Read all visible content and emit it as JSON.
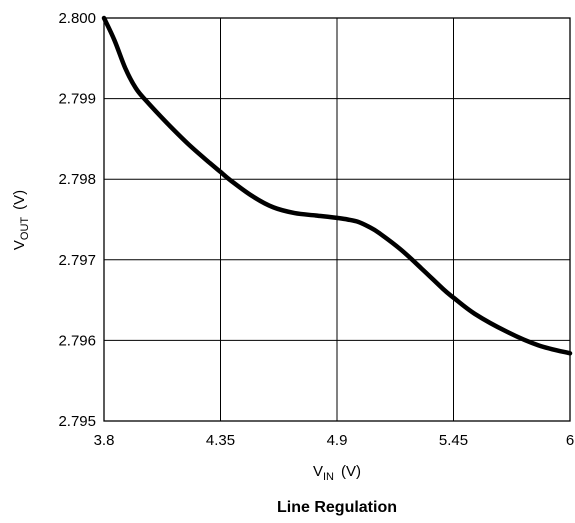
{
  "chart_data": {
    "type": "line",
    "title": "Line Regulation",
    "xlabel": {
      "main": "V",
      "sub": "IN",
      "unit": "(V)"
    },
    "ylabel": {
      "main": "V",
      "sub": "OUT",
      "unit": "(V)"
    },
    "xlim": [
      3.8,
      6.0
    ],
    "ylim": [
      2.795,
      2.8
    ],
    "grid": true,
    "x_ticks": [
      "3.8",
      "4.35",
      "4.9",
      "5.45",
      "6"
    ],
    "y_ticks": [
      "2.795",
      "2.796",
      "2.797",
      "2.798",
      "2.799",
      "2.800"
    ],
    "series": [
      {
        "x": [
          3.8,
          3.85,
          3.9,
          3.95,
          4.0,
          4.1,
          4.2,
          4.3,
          4.35,
          4.4,
          4.5,
          4.6,
          4.7,
          4.8,
          4.9,
          4.95,
          5.0,
          5.05,
          5.1,
          5.2,
          5.3,
          5.4,
          5.45,
          5.55,
          5.7,
          5.85,
          6.0
        ],
        "y": [
          2.8,
          2.79972,
          2.79938,
          2.79913,
          2.79897,
          2.79869,
          2.79843,
          2.7982,
          2.79809,
          2.79798,
          2.79779,
          2.79765,
          2.79758,
          2.79755,
          2.79752,
          2.7975,
          2.79747,
          2.79741,
          2.79733,
          2.79713,
          2.79689,
          2.79664,
          2.79653,
          2.79633,
          2.79611,
          2.79594,
          2.79584
        ]
      }
    ]
  }
}
